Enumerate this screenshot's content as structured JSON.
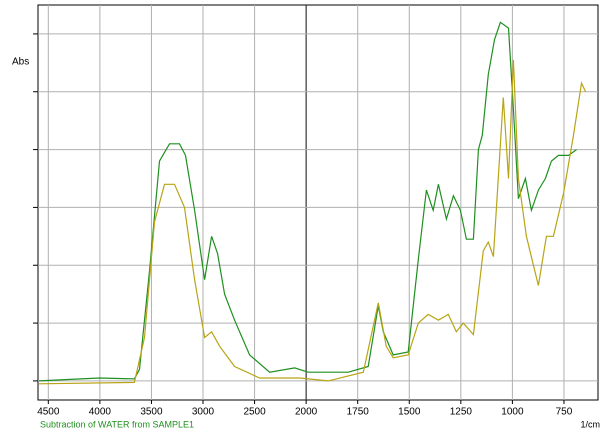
{
  "chart_data": {
    "type": "line",
    "ylabel": "Abs",
    "xlabel": "1/cm",
    "subtitle": "Subtraction of WATER from SAMPLE1",
    "xlim": [
      4600,
      585
    ],
    "xticks": [
      4500,
      4000,
      3500,
      3000,
      2500,
      2000,
      1750,
      1500,
      1250,
      1000,
      750
    ],
    "ylim": [
      -0.066,
      1.3
    ],
    "yticks": [
      0,
      0.2,
      0.4,
      0.6,
      0.8,
      1.0,
      1.2
    ],
    "grid": true,
    "series": [
      {
        "name": "SAMPLE1",
        "color": "#1f8f1f",
        "x": [
          4590,
          4005,
          3665,
          3616,
          3519,
          3422,
          3325,
          3228,
          3170,
          3082,
          2985,
          2917,
          2859,
          2791,
          2694,
          2548,
          2354,
          2111,
          1990,
          1796,
          1699,
          1650,
          1626,
          1578,
          1505,
          1456,
          1417,
          1384,
          1359,
          1320,
          1286,
          1252,
          1223,
          1189,
          1165,
          1146,
          1117,
          1087,
          1058,
          1019,
          995,
          971,
          937,
          908,
          874,
          840,
          811,
          777,
          728,
          689
        ],
        "values": [
          0.0,
          0.01,
          0.007,
          0.04,
          0.38,
          0.76,
          0.82,
          0.82,
          0.78,
          0.59,
          0.35,
          0.5,
          0.44,
          0.3,
          0.21,
          0.09,
          0.03,
          0.045,
          0.03,
          0.03,
          0.05,
          0.26,
          0.17,
          0.09,
          0.1,
          0.42,
          0.66,
          0.59,
          0.68,
          0.56,
          0.64,
          0.59,
          0.49,
          0.49,
          0.8,
          0.85,
          1.06,
          1.18,
          1.24,
          1.22,
          0.94,
          0.63,
          0.7,
          0.59,
          0.66,
          0.7,
          0.76,
          0.78,
          0.78,
          0.8
        ]
      },
      {
        "name": "WATER",
        "color": "#b8a414",
        "x": [
          4590,
          3665,
          3567,
          3470,
          3373,
          3276,
          3179,
          3082,
          2985,
          2917,
          2839,
          2694,
          2451,
          2063,
          1893,
          1723,
          1650,
          1612,
          1578,
          1505,
          1456,
          1408,
          1359,
          1311,
          1272,
          1238,
          1189,
          1141,
          1117,
          1092,
          1044,
          1019,
          995,
          971,
          932,
          898,
          874,
          835,
          801,
          752,
          704,
          665,
          645
        ],
        "values": [
          -0.01,
          -0.005,
          0.15,
          0.55,
          0.68,
          0.68,
          0.6,
          0.35,
          0.15,
          0.17,
          0.12,
          0.05,
          0.01,
          0.01,
          0.0,
          0.03,
          0.27,
          0.12,
          0.08,
          0.09,
          0.2,
          0.23,
          0.21,
          0.23,
          0.17,
          0.2,
          0.16,
          0.45,
          0.48,
          0.43,
          0.98,
          0.7,
          1.11,
          0.7,
          0.5,
          0.4,
          0.33,
          0.5,
          0.5,
          0.65,
          0.85,
          1.03,
          1.0
        ]
      }
    ]
  }
}
